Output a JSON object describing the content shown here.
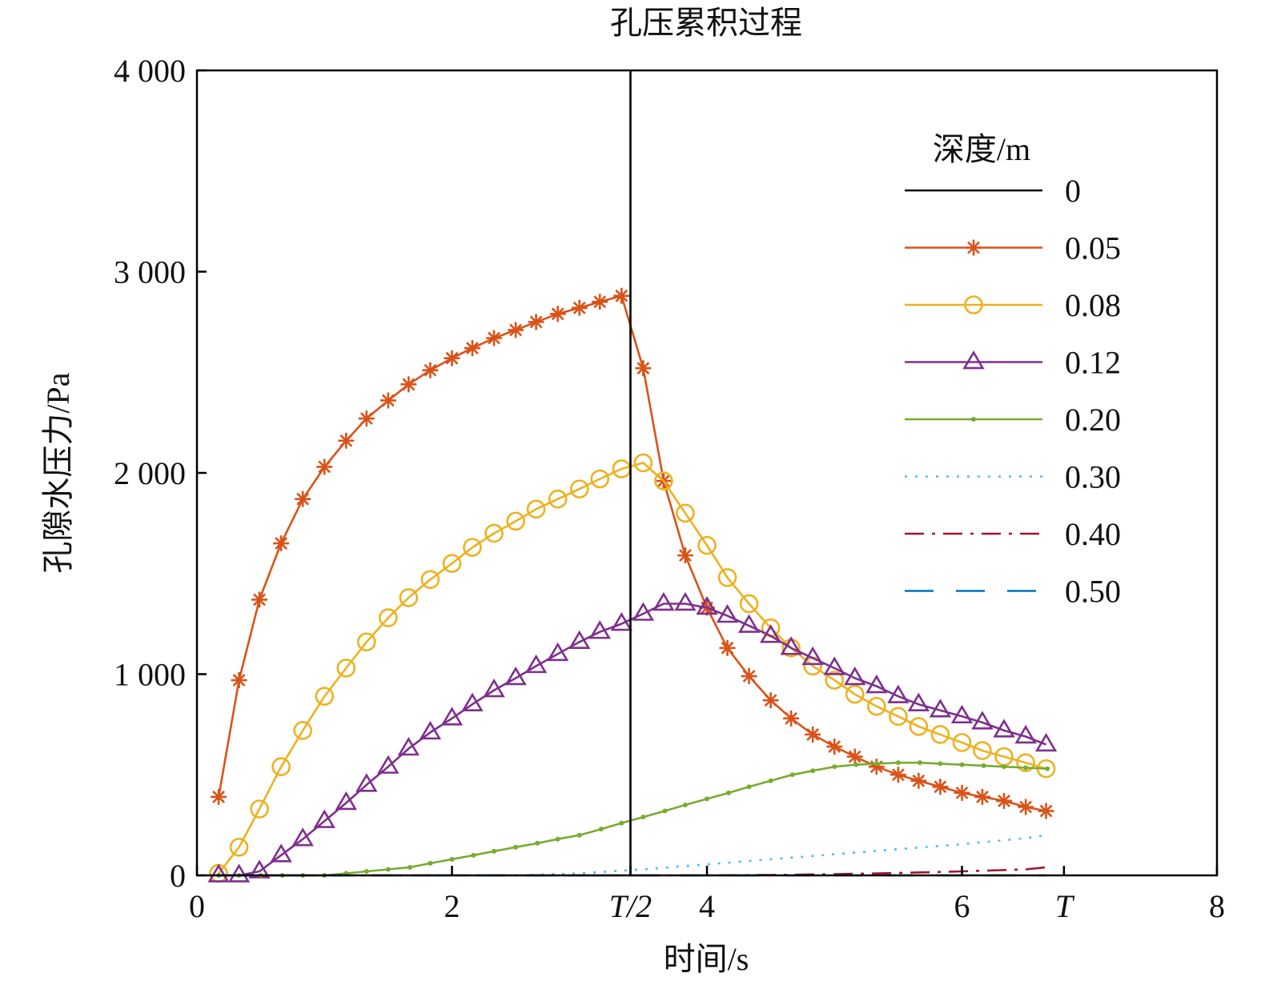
{
  "chart_data": {
    "type": "line",
    "title": "孔压累积过程",
    "xlabel": "时间/s",
    "ylabel": "孔隙水压力/Pa",
    "xlim": [
      0,
      8
    ],
    "ylim": [
      0,
      4000
    ],
    "x_ticks": [
      {
        "value": 0,
        "label": "0",
        "italic": false
      },
      {
        "value": 2,
        "label": "2",
        "italic": false
      },
      {
        "value": 3.4,
        "label": "T/2",
        "italic": true
      },
      {
        "value": 4,
        "label": "4",
        "italic": false
      },
      {
        "value": 6,
        "label": "6",
        "italic": false
      },
      {
        "value": 6.8,
        "label": "T",
        "italic": true
      },
      {
        "value": 8,
        "label": "8",
        "italic": false
      }
    ],
    "y_ticks": [
      {
        "value": 0,
        "label": "0"
      },
      {
        "value": 1000,
        "label": "1 000"
      },
      {
        "value": 2000,
        "label": "2 000"
      },
      {
        "value": 3000,
        "label": "3 000"
      },
      {
        "value": 4000,
        "label": "4 000"
      }
    ],
    "grid": false,
    "legend": {
      "title": "深度/m",
      "position": "top-right"
    },
    "t_half_line": {
      "x": 3.4,
      "color": "#000000"
    },
    "series": [
      {
        "name": "0",
        "color": "#000000",
        "marker": "none",
        "dash": "solid",
        "x": [],
        "y": []
      },
      {
        "name": "0.05",
        "color": "#D95319",
        "marker": "star",
        "dash": "solid",
        "x": [
          0.17,
          0.33,
          0.49,
          0.66,
          0.83,
          1.0,
          1.17,
          1.33,
          1.5,
          1.66,
          1.83,
          2.0,
          2.16,
          2.33,
          2.5,
          2.66,
          2.83,
          3.0,
          3.16,
          3.33,
          3.5,
          3.66,
          3.83,
          4.0,
          4.16,
          4.33,
          4.5,
          4.66,
          4.83,
          5.0,
          5.16,
          5.33,
          5.5,
          5.66,
          5.83,
          6.0,
          6.16,
          6.33,
          6.5,
          6.66
        ],
        "y": [
          390,
          970,
          1370,
          1650,
          1870,
          2030,
          2160,
          2270,
          2360,
          2440,
          2510,
          2570,
          2620,
          2670,
          2710,
          2750,
          2790,
          2820,
          2850,
          2880,
          2520,
          1960,
          1590,
          1330,
          1130,
          990,
          870,
          780,
          700,
          640,
          590,
          540,
          500,
          470,
          440,
          410,
          390,
          370,
          340,
          320
        ]
      },
      {
        "name": "0.08",
        "color": "#EDB120",
        "marker": "circle",
        "dash": "solid",
        "x": [
          0.17,
          0.33,
          0.49,
          0.66,
          0.83,
          1.0,
          1.17,
          1.33,
          1.5,
          1.66,
          1.83,
          2.0,
          2.16,
          2.33,
          2.5,
          2.66,
          2.83,
          3.0,
          3.16,
          3.33,
          3.5,
          3.66,
          3.83,
          4.0,
          4.16,
          4.33,
          4.5,
          4.66,
          4.83,
          5.0,
          5.16,
          5.33,
          5.5,
          5.66,
          5.83,
          6.0,
          6.16,
          6.33,
          6.5,
          6.66
        ],
        "y": [
          10,
          140,
          330,
          540,
          720,
          890,
          1030,
          1160,
          1280,
          1380,
          1470,
          1550,
          1630,
          1700,
          1760,
          1820,
          1870,
          1920,
          1970,
          2020,
          2050,
          1960,
          1800,
          1640,
          1480,
          1350,
          1230,
          1130,
          1040,
          970,
          900,
          840,
          790,
          740,
          700,
          660,
          620,
          590,
          560,
          530
        ]
      },
      {
        "name": "0.12",
        "color": "#7E2F8E",
        "marker": "triangle",
        "dash": "solid",
        "x": [
          0.17,
          0.33,
          0.49,
          0.66,
          0.83,
          1.0,
          1.17,
          1.33,
          1.5,
          1.66,
          1.83,
          2.0,
          2.16,
          2.33,
          2.5,
          2.66,
          2.83,
          3.0,
          3.16,
          3.33,
          3.5,
          3.66,
          3.83,
          4.0,
          4.16,
          4.33,
          4.5,
          4.66,
          4.83,
          5.0,
          5.16,
          5.33,
          5.5,
          5.66,
          5.83,
          6.0,
          6.16,
          6.33,
          6.5,
          6.66
        ],
        "y": [
          0,
          0,
          20,
          100,
          180,
          270,
          360,
          450,
          540,
          630,
          710,
          780,
          850,
          920,
          980,
          1040,
          1100,
          1160,
          1210,
          1250,
          1300,
          1350,
          1350,
          1330,
          1290,
          1240,
          1190,
          1130,
          1080,
          1030,
          980,
          940,
          890,
          850,
          820,
          790,
          760,
          720,
          690,
          650
        ]
      },
      {
        "name": "0.20",
        "color": "#77AC30",
        "marker": "dot",
        "dash": "solid",
        "x": [
          0.17,
          0.33,
          0.5,
          0.67,
          0.83,
          1.0,
          1.17,
          1.33,
          1.5,
          1.67,
          1.83,
          2.0,
          2.17,
          2.33,
          2.5,
          2.67,
          2.83,
          3.0,
          3.17,
          3.33,
          3.5,
          3.67,
          3.83,
          4.0,
          4.17,
          4.33,
          4.5,
          4.67,
          4.83,
          5.0,
          5.17,
          5.33,
          5.5,
          5.67,
          5.83,
          6.0,
          6.17,
          6.33,
          6.5,
          6.67
        ],
        "y": [
          0,
          0,
          0,
          0,
          0,
          0,
          10,
          20,
          30,
          40,
          60,
          80,
          100,
          120,
          140,
          160,
          180,
          200,
          230,
          260,
          290,
          320,
          350,
          380,
          410,
          440,
          470,
          500,
          520,
          540,
          550,
          555,
          560,
          560,
          555,
          550,
          545,
          540,
          535,
          530
        ]
      },
      {
        "name": "0.30",
        "color": "#4DBEEE",
        "marker": "none",
        "dash": "dotted",
        "x": [
          0.17,
          1.0,
          2.0,
          2.5,
          3.0,
          3.5,
          4.0,
          4.5,
          5.0,
          5.5,
          6.0,
          6.5,
          6.66
        ],
        "y": [
          0,
          0,
          0,
          0,
          10,
          30,
          55,
          80,
          105,
          130,
          155,
          185,
          200
        ]
      },
      {
        "name": "0.40",
        "color": "#A2142F",
        "marker": "none",
        "dash": "dashdot",
        "x": [
          0.17,
          3.0,
          4.0,
          4.5,
          5.0,
          5.5,
          6.0,
          6.5,
          6.66
        ],
        "y": [
          0,
          0,
          0,
          2,
          6,
          12,
          20,
          30,
          40
        ]
      },
      {
        "name": "0.50",
        "color": "#0072BD",
        "marker": "none",
        "dash": "dashed",
        "x": [
          0.17,
          6.66
        ],
        "y": [
          0,
          0
        ]
      }
    ]
  }
}
